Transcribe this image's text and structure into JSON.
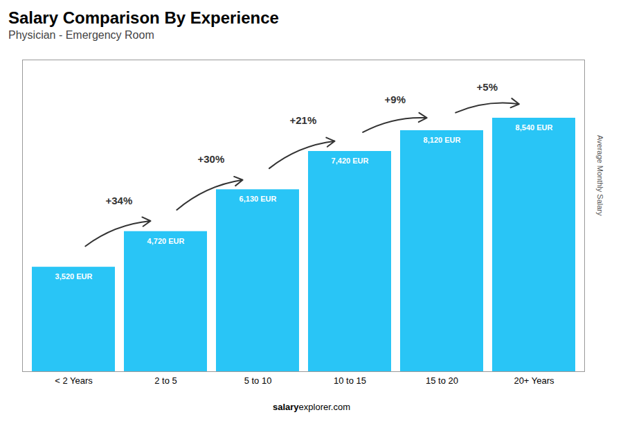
{
  "chart_data": {
    "type": "bar",
    "title": "Salary Comparison By Experience",
    "subtitle": "Physician - Emergency Room",
    "categories": [
      "< 2 Years",
      "2 to 5",
      "5 to 10",
      "10 to 15",
      "15 to 20",
      "20+ Years"
    ],
    "values": [
      3520,
      4720,
      6130,
      7420,
      8120,
      8540
    ],
    "value_labels": [
      "3,520 EUR",
      "4,720 EUR",
      "6,130 EUR",
      "7,420 EUR",
      "8,120 EUR",
      "8,540 EUR"
    ],
    "data_labels": true,
    "color": "#29C5F6",
    "ylabel": "Average Monthly Salary",
    "ylim": [
      0,
      10500
    ],
    "tick_labels": "x",
    "annotations": [
      "+34%",
      "+30%",
      "+21%",
      "+9%",
      "+5%"
    ],
    "footer": [
      "salary",
      "explorer.com"
    ]
  }
}
